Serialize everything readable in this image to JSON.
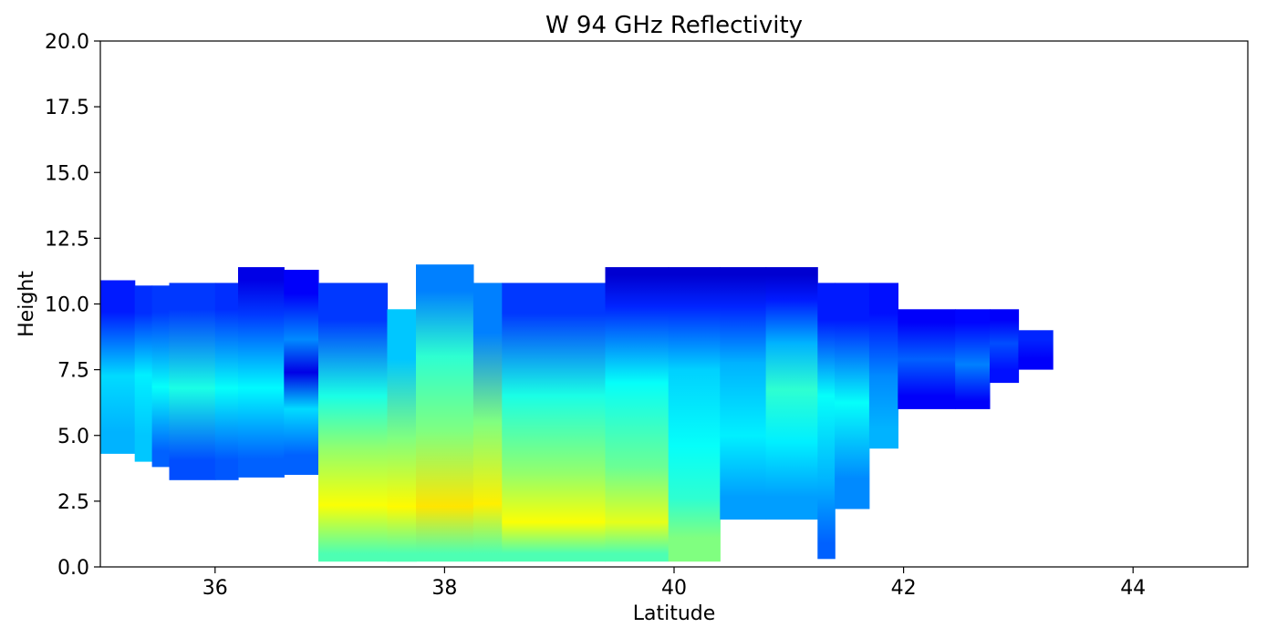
{
  "chart_data": {
    "type": "heatmap",
    "title": "W 94 GHz Reflectivity",
    "xlabel": "Latitude",
    "ylabel": "Height",
    "xlim": [
      35,
      45
    ],
    "ylim": [
      0,
      20
    ],
    "xticks": [
      "36",
      "38",
      "40",
      "42",
      "44"
    ],
    "xtick_values": [
      36,
      38,
      40,
      42,
      44
    ],
    "yticks": [
      "0.0",
      "2.5",
      "5.0",
      "7.5",
      "10.0",
      "12.5",
      "15.0",
      "17.5",
      "20.0"
    ],
    "ytick_values": [
      0,
      2.5,
      5,
      7.5,
      10,
      12.5,
      15,
      17.5,
      20
    ],
    "colormap": "jet",
    "color_scale_note_levels": [
      0,
      1
    ],
    "grid": false,
    "columns": [
      {
        "lat0": 35.0,
        "lat1": 35.3,
        "top": 10.9,
        "bot": 4.3,
        "segs": [
          [
            4.3,
            6.0,
            0.3
          ],
          [
            6.0,
            8.5,
            0.34
          ],
          [
            8.5,
            10.9,
            0.15
          ]
        ]
      },
      {
        "lat0": 35.3,
        "lat1": 35.45,
        "top": 10.7,
        "bot": 4.0,
        "segs": [
          [
            4.0,
            6.0,
            0.32
          ],
          [
            6.0,
            8.6,
            0.36
          ],
          [
            8.6,
            10.7,
            0.17
          ]
        ]
      },
      {
        "lat0": 35.45,
        "lat1": 35.6,
        "top": 10.7,
        "bot": 3.8,
        "segs": [
          [
            3.8,
            5.0,
            0.22
          ],
          [
            5.0,
            8.7,
            0.38
          ],
          [
            8.7,
            10.7,
            0.18
          ]
        ]
      },
      {
        "lat0": 35.6,
        "lat1": 36.0,
        "top": 10.8,
        "bot": 3.3,
        "segs": [
          [
            3.3,
            4.8,
            0.2
          ],
          [
            4.8,
            8.8,
            0.4
          ],
          [
            8.8,
            10.8,
            0.18
          ]
        ]
      },
      {
        "lat0": 36.0,
        "lat1": 36.2,
        "top": 10.8,
        "bot": 3.3,
        "segs": [
          [
            3.3,
            4.8,
            0.21
          ],
          [
            4.8,
            8.8,
            0.38
          ],
          [
            8.8,
            10.8,
            0.17
          ]
        ]
      },
      {
        "lat0": 36.2,
        "lat1": 36.6,
        "top": 11.4,
        "bot": 3.4,
        "segs": [
          [
            3.4,
            4.8,
            0.22
          ],
          [
            4.8,
            8.8,
            0.37
          ],
          [
            8.8,
            10.4,
            0.18
          ],
          [
            10.4,
            11.4,
            0.1
          ]
        ]
      },
      {
        "lat0": 36.6,
        "lat1": 36.9,
        "top": 11.3,
        "bot": 3.5,
        "segs": [
          [
            3.5,
            5.0,
            0.22
          ],
          [
            5.0,
            7.0,
            0.34
          ],
          [
            7.0,
            7.8,
            0.1
          ],
          [
            7.8,
            9.5,
            0.26
          ],
          [
            9.5,
            11.3,
            0.12
          ]
        ]
      },
      {
        "lat0": 36.9,
        "lat1": 37.5,
        "top": 10.8,
        "bot": 0.2,
        "segs": [
          [
            0.2,
            0.8,
            0.45
          ],
          [
            0.8,
            3.9,
            0.62
          ],
          [
            3.9,
            5.0,
            0.52
          ],
          [
            5.0,
            8.0,
            0.4
          ],
          [
            8.0,
            10.8,
            0.18
          ]
        ]
      },
      {
        "lat0": 37.5,
        "lat1": 37.75,
        "top": 9.8,
        "bot": 0.2,
        "segs": [
          [
            0.2,
            0.8,
            0.45
          ],
          [
            0.8,
            3.8,
            0.63
          ],
          [
            3.8,
            6.0,
            0.5
          ],
          [
            6.0,
            9.8,
            0.32
          ]
        ]
      },
      {
        "lat0": 37.75,
        "lat1": 38.25,
        "top": 11.5,
        "bot": 0.2,
        "segs": [
          [
            0.2,
            0.8,
            0.45
          ],
          [
            0.8,
            3.8,
            0.65
          ],
          [
            3.8,
            6.5,
            0.5
          ],
          [
            6.5,
            9.5,
            0.42
          ],
          [
            9.5,
            11.5,
            0.25
          ]
        ]
      },
      {
        "lat0": 38.25,
        "lat1": 38.5,
        "top": 10.8,
        "bot": 0.2,
        "segs": [
          [
            0.2,
            0.8,
            0.45
          ],
          [
            0.8,
            4.0,
            0.64
          ],
          [
            4.0,
            7.0,
            0.5
          ],
          [
            7.0,
            10.8,
            0.25
          ]
        ]
      },
      {
        "lat0": 38.5,
        "lat1": 39.4,
        "top": 10.8,
        "bot": 0.2,
        "segs": [
          [
            0.2,
            0.8,
            0.45
          ],
          [
            0.8,
            2.6,
            0.62
          ],
          [
            2.6,
            4.5,
            0.52
          ],
          [
            4.5,
            8.5,
            0.4
          ],
          [
            8.5,
            10.8,
            0.18
          ]
        ]
      },
      {
        "lat0": 39.4,
        "lat1": 39.95,
        "top": 11.4,
        "bot": 0.2,
        "segs": [
          [
            0.2,
            0.8,
            0.45
          ],
          [
            0.8,
            2.6,
            0.6
          ],
          [
            2.6,
            5.0,
            0.48
          ],
          [
            5.0,
            9.0,
            0.38
          ],
          [
            9.0,
            10.8,
            0.16
          ],
          [
            10.8,
            11.4,
            0.08
          ]
        ]
      },
      {
        "lat0": 39.95,
        "lat1": 40.4,
        "top": 11.4,
        "bot": 0.2,
        "segs": [
          [
            0.2,
            2.0,
            0.5
          ],
          [
            2.0,
            3.2,
            0.42
          ],
          [
            3.2,
            6.0,
            0.38
          ],
          [
            6.0,
            9.0,
            0.33
          ],
          [
            9.0,
            10.8,
            0.16
          ],
          [
            10.8,
            11.4,
            0.08
          ]
        ]
      },
      {
        "lat0": 40.4,
        "lat1": 40.8,
        "top": 11.4,
        "bot": 1.8,
        "segs": [
          [
            1.8,
            3.5,
            0.28
          ],
          [
            3.5,
            6.5,
            0.36
          ],
          [
            6.5,
            9.0,
            0.3
          ],
          [
            9.0,
            10.8,
            0.16
          ],
          [
            10.8,
            11.4,
            0.08
          ]
        ]
      },
      {
        "lat0": 40.8,
        "lat1": 41.25,
        "top": 11.4,
        "bot": 1.8,
        "segs": [
          [
            1.8,
            3.5,
            0.28
          ],
          [
            3.5,
            6.0,
            0.36
          ],
          [
            6.0,
            7.5,
            0.42
          ],
          [
            7.5,
            9.5,
            0.3
          ],
          [
            9.5,
            10.8,
            0.15
          ],
          [
            10.8,
            11.4,
            0.08
          ]
        ]
      },
      {
        "lat0": 41.25,
        "lat1": 41.4,
        "top": 10.8,
        "bot": 0.3,
        "segs": [
          [
            0.3,
            1.5,
            0.22
          ],
          [
            1.5,
            5.0,
            0.3
          ],
          [
            5.0,
            8.0,
            0.38
          ],
          [
            8.0,
            10.8,
            0.15
          ]
        ]
      },
      {
        "lat0": 41.4,
        "lat1": 41.7,
        "top": 10.8,
        "bot": 2.2,
        "segs": [
          [
            2.2,
            4.5,
            0.26
          ],
          [
            4.5,
            8.0,
            0.38
          ],
          [
            8.0,
            10.8,
            0.15
          ]
        ]
      },
      {
        "lat0": 41.7,
        "lat1": 41.95,
        "top": 10.8,
        "bot": 4.5,
        "segs": [
          [
            4.5,
            6.0,
            0.3
          ],
          [
            6.0,
            8.5,
            0.26
          ],
          [
            8.5,
            10.8,
            0.14
          ]
        ]
      },
      {
        "lat0": 41.95,
        "lat1": 42.45,
        "top": 9.8,
        "bot": 6.0,
        "segs": [
          [
            6.0,
            7.0,
            0.12
          ],
          [
            7.0,
            8.8,
            0.22
          ],
          [
            8.8,
            9.8,
            0.12
          ]
        ]
      },
      {
        "lat0": 42.45,
        "lat1": 42.75,
        "top": 9.8,
        "bot": 6.0,
        "segs": [
          [
            6.0,
            6.6,
            0.12
          ],
          [
            6.6,
            8.8,
            0.25
          ],
          [
            8.8,
            9.8,
            0.13
          ]
        ]
      },
      {
        "lat0": 42.75,
        "lat1": 43.0,
        "top": 9.8,
        "bot": 7.0,
        "segs": [
          [
            7.0,
            8.0,
            0.14
          ],
          [
            8.0,
            9.0,
            0.2
          ],
          [
            9.0,
            9.8,
            0.12
          ]
        ]
      },
      {
        "lat0": 43.0,
        "lat1": 43.3,
        "top": 9.0,
        "bot": 7.5,
        "segs": [
          [
            7.5,
            8.3,
            0.12
          ],
          [
            8.3,
            9.0,
            0.16
          ]
        ]
      }
    ]
  }
}
